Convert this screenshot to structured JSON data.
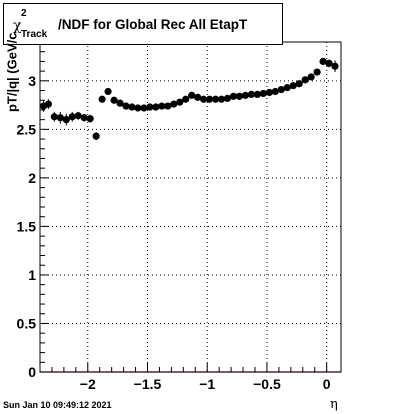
{
  "title": {
    "chi_symbol": "χ",
    "superscript": "2",
    "subscript": "Track",
    "rest": "/NDF for Global Rec All EtapT"
  },
  "datestamp": "Sun Jan 10 09:49:12 2021",
  "chart_data": {
    "type": "scatter",
    "title": "χ²_Track/NDF for Global Rec All EtapT",
    "xlabel": "η",
    "ylabel": "pT/|q| (GeV/c",
    "xlim": [
      -2.4,
      0.12
    ],
    "ylim": [
      0,
      3.4
    ],
    "xticks": [
      -2,
      -1.5,
      -1,
      -0.5,
      0
    ],
    "xtick_labels": [
      "−2",
      "−1.5",
      "−1",
      "−0.5",
      "0"
    ],
    "yticks": [
      0,
      0.5,
      1,
      1.5,
      2,
      2.5,
      3
    ],
    "ytick_labels": [
      "0",
      "0.5",
      "1",
      "1.5",
      "2",
      "2.5",
      "3"
    ],
    "grid": true,
    "marker_color": "#000000",
    "zero_line_color": "#cc0000",
    "series": [
      {
        "x": [
          -2.37,
          -2.33,
          -2.28,
          -2.23,
          -2.18,
          -2.13,
          -2.08,
          -2.03,
          -1.98,
          -1.93,
          -1.88,
          -1.83,
          -1.78,
          -1.73,
          -1.68,
          -1.63,
          -1.58,
          -1.53,
          -1.48,
          -1.43,
          -1.38,
          -1.33,
          -1.28,
          -1.23,
          -1.18,
          -1.13,
          -1.08,
          -1.03,
          -0.98,
          -0.93,
          -0.88,
          -0.83,
          -0.78,
          -0.73,
          -0.68,
          -0.63,
          -0.58,
          -0.53,
          -0.48,
          -0.43,
          -0.38,
          -0.33,
          -0.28,
          -0.23,
          -0.18,
          -0.13,
          -0.08,
          -0.03,
          0.02,
          0.07
        ],
        "y": [
          2.74,
          2.76,
          2.63,
          2.62,
          2.6,
          2.63,
          2.64,
          2.62,
          2.61,
          2.43,
          2.81,
          2.89,
          2.8,
          2.77,
          2.74,
          2.73,
          2.72,
          2.72,
          2.73,
          2.73,
          2.74,
          2.74,
          2.76,
          2.78,
          2.81,
          2.85,
          2.83,
          2.81,
          2.81,
          2.81,
          2.81,
          2.82,
          2.84,
          2.84,
          2.85,
          2.86,
          2.86,
          2.87,
          2.88,
          2.89,
          2.91,
          2.93,
          2.95,
          2.97,
          3.01,
          3.04,
          3.09,
          3.2,
          3.18,
          3.15
        ],
        "yerr": [
          0.06,
          0.05,
          0.05,
          0.06,
          0.06,
          0.05,
          0.04,
          0.04,
          0.04,
          0.04,
          0.03,
          0.03,
          0.02,
          0.02,
          0.02,
          0.02,
          0.02,
          0.02,
          0.02,
          0.02,
          0.02,
          0.02,
          0.02,
          0.02,
          0.02,
          0.02,
          0.02,
          0.02,
          0.02,
          0.02,
          0.02,
          0.02,
          0.02,
          0.02,
          0.02,
          0.02,
          0.02,
          0.02,
          0.02,
          0.02,
          0.02,
          0.02,
          0.02,
          0.02,
          0.02,
          0.02,
          0.03,
          0.03,
          0.04,
          0.06
        ]
      }
    ]
  }
}
